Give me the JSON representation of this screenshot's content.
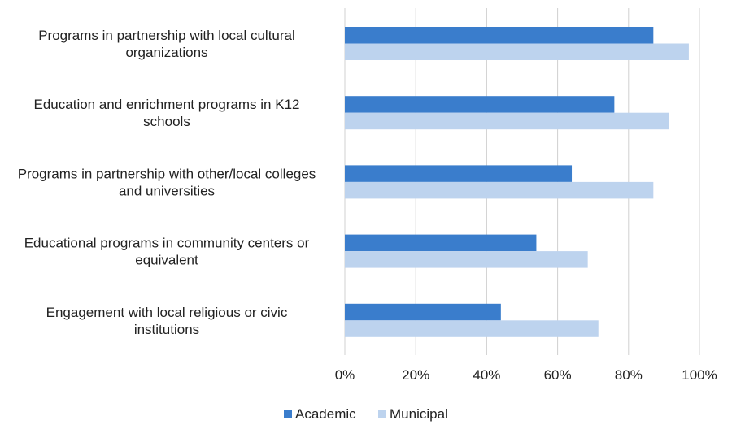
{
  "chart_data": {
    "type": "bar",
    "orientation": "horizontal",
    "categories": [
      [
        "Programs in partnership with local cultural",
        "organizations"
      ],
      [
        "Education and enrichment programs in K12",
        "schools"
      ],
      [
        "Programs in partnership with other/local colleges",
        "and universities"
      ],
      [
        "Educational programs in community centers or",
        "equivalent"
      ],
      [
        "Engagement with local religious or civic",
        "institutions"
      ]
    ],
    "series": [
      {
        "name": "Academic",
        "color": "#3a7dcc",
        "values": [
          87,
          76,
          64,
          54,
          44
        ]
      },
      {
        "name": "Municipal",
        "color": "#bdd3ee",
        "values": [
          97,
          91.5,
          87,
          68.5,
          71.5
        ]
      }
    ],
    "xlim": [
      0,
      100
    ],
    "xticks": [
      "0%",
      "20%",
      "40%",
      "60%",
      "80%",
      "100%"
    ],
    "grid": true,
    "legend": "bottom"
  }
}
